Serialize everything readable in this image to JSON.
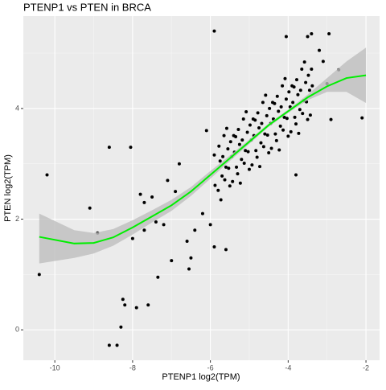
{
  "chart_data": {
    "type": "scatter",
    "title": "PTENP1 vs  PTEN in BRCA",
    "x_label": "PTENP1 log2(TPM)",
    "y_label": "PTEN log2(TPM)",
    "xlim": [
      -10.81,
      -1.65
    ],
    "ylim": [
      -0.55,
      5.67
    ],
    "xticks": [
      -10,
      -8,
      -6,
      -4,
      -2
    ],
    "yticks": [
      0,
      2,
      4
    ],
    "x_minor_grid": [
      -9,
      -7,
      -5,
      -3
    ],
    "y_minor_grid": [
      1,
      3,
      5
    ],
    "grid": true,
    "color": "#000000",
    "x": [
      -10.4,
      -10.2,
      -9.1,
      -8.9,
      -8.6,
      -8.6,
      -8.4,
      -8.3,
      -8.25,
      -8.2,
      -8.05,
      -8.0,
      -7.9,
      -7.8,
      -7.7,
      -7.7,
      -7.6,
      -7.5,
      -7.4,
      -7.35,
      -7.2,
      -7.1,
      -7.0,
      -6.9,
      -6.8,
      -6.6,
      -6.55,
      -6.5,
      -6.4,
      -6.2,
      -6.1,
      -6.0,
      -5.9,
      -5.6,
      -5.9,
      -4.05,
      -3.5,
      -3.4,
      -2.95,
      -3.2,
      -3.1,
      -2.1,
      -2.7,
      -2.9,
      -3.0,
      -3.8,
      -5.9,
      -5.8,
      -5.75,
      -5.7,
      -5.65,
      -5.6,
      -5.55,
      -5.5,
      -5.45,
      -5.4,
      -5.35,
      -5.3,
      -5.25,
      -5.2,
      -5.15,
      -5.1,
      -5.05,
      -5.0,
      -4.95,
      -4.9,
      -4.85,
      -4.8,
      -4.75,
      -4.7,
      -4.65,
      -4.6,
      -4.55,
      -4.5,
      -4.45,
      -4.4,
      -4.35,
      -4.3,
      -4.25,
      -4.2,
      -4.15,
      -4.1,
      -4.05,
      -4.0,
      -3.95,
      -3.9,
      -3.85,
      -3.8,
      -3.75,
      -3.7,
      -3.65,
      -3.6,
      -3.55,
      -3.5,
      -3.45,
      -3.4,
      -5.88,
      -5.78,
      -5.73,
      -5.68,
      -5.63,
      -5.58,
      -5.53,
      -5.48,
      -5.43,
      -5.38,
      -5.33,
      -5.28,
      -5.23,
      -5.18,
      -5.13,
      -5.08,
      -5.03,
      -4.98,
      -4.93,
      -4.88,
      -4.83,
      -4.78,
      -4.73,
      -4.68,
      -4.63,
      -4.58,
      -4.53,
      -4.48,
      -4.43,
      -4.38,
      -4.33,
      -4.28,
      -4.23,
      -4.18,
      -4.13,
      -4.08,
      -4.03,
      -3.98,
      -3.93,
      -3.88,
      -3.83,
      -3.78,
      -3.73,
      -3.68,
      -3.63,
      -3.58,
      -3.53,
      -3.48,
      -3.43,
      -3.38
    ],
    "values": [
      1.0,
      2.8,
      2.2,
      1.75,
      3.3,
      -0.28,
      -0.28,
      0.05,
      0.55,
      0.45,
      3.3,
      1.65,
      0.4,
      2.45,
      2.3,
      1.8,
      0.45,
      2.4,
      1.95,
      0.95,
      1.9,
      2.7,
      1.25,
      2.5,
      3.0,
      1.6,
      1.1,
      1.3,
      1.8,
      2.1,
      3.6,
      1.9,
      1.5,
      1.45,
      5.4,
      5.3,
      5.3,
      5.35,
      5.35,
      5.05,
      4.85,
      3.83,
      4.7,
      3.8,
      4.45,
      2.8,
      3.16,
      2.52,
      3.05,
      2.78,
      3.51,
      2.94,
      3.27,
      2.6,
      3.13,
      3.51,
      3.49,
      2.82,
      3.35,
      3.08,
      3.81,
      3.24,
      3.57,
      2.9,
      3.43,
      3.81,
      3.79,
      3.12,
      3.65,
      3.38,
      4.11,
      3.54,
      3.87,
      3.2,
      3.73,
      4.11,
      4.09,
      3.42,
      3.95,
      3.68,
      4.41,
      3.84,
      4.17,
      3.5,
      4.03,
      4.41,
      4.39,
      3.72,
      4.25,
      3.98,
      4.71,
      4.14,
      4.47,
      3.8,
      4.33,
      4.71,
      2.61,
      3.32,
      2.35,
      3.13,
      2.71,
      3.64,
      2.92,
      3.4,
      2.68,
      3.21,
      2.94,
      3.62,
      2.65,
      3.43,
      3.01,
      3.94,
      3.22,
      3.7,
      2.98,
      3.51,
      3.24,
      3.92,
      2.95,
      3.73,
      3.31,
      4.24,
      3.52,
      4.0,
      3.28,
      3.81,
      3.54,
      4.22,
      3.25,
      4.03,
      3.61,
      4.54,
      3.82,
      4.3,
      3.58,
      4.11,
      3.84,
      4.52,
      3.55,
      4.33,
      3.91,
      4.84,
      4.12,
      4.6,
      3.88,
      4.41
    ],
    "smooth": {
      "color": "#00ee00",
      "band_color": "#bebebe",
      "x": [
        -10.4,
        -9.5,
        -9.0,
        -8.5,
        -8.0,
        -7.5,
        -7.0,
        -6.5,
        -6.0,
        -5.5,
        -5.0,
        -4.5,
        -4.0,
        -3.5,
        -3.0,
        -2.5,
        -2.0
      ],
      "values": [
        1.68,
        1.56,
        1.57,
        1.67,
        1.85,
        2.05,
        2.25,
        2.5,
        2.8,
        3.1,
        3.4,
        3.7,
        3.95,
        4.2,
        4.4,
        4.55,
        4.6
      ],
      "lower": [
        1.2,
        1.3,
        1.38,
        1.52,
        1.72,
        1.94,
        2.15,
        2.42,
        2.73,
        3.05,
        3.36,
        3.67,
        3.92,
        4.15,
        4.3,
        4.3,
        4.1
      ],
      "upper": [
        2.1,
        1.8,
        1.75,
        1.82,
        1.98,
        2.16,
        2.35,
        2.58,
        2.87,
        3.15,
        3.44,
        3.73,
        3.98,
        4.25,
        4.55,
        4.85,
        5.1
      ]
    }
  }
}
